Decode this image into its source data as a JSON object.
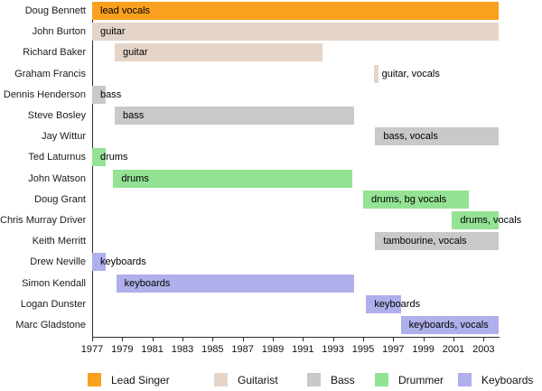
{
  "chart_data": {
    "type": "bar",
    "subtype": "member-timeline",
    "title": "",
    "xlabel": "",
    "ylabel": "",
    "grid": false,
    "legend_position": "bottom",
    "x_axis": {
      "min": 1977,
      "max": 2004,
      "tick_step": 2,
      "ticks": [
        1977,
        1979,
        1981,
        1983,
        1985,
        1987,
        1989,
        1991,
        1993,
        1995,
        1997,
        1999,
        2001,
        2003
      ]
    },
    "roles": {
      "lead_singer": {
        "label": "Lead Singer",
        "color": "#F9A11E"
      },
      "guitarist": {
        "label": "Guitarist",
        "color": "#E5D5C8"
      },
      "bass": {
        "label": "Bass",
        "color": "#C9C9C9"
      },
      "drummer": {
        "label": "Drummer",
        "color": "#94E294"
      },
      "keyboards": {
        "label": "Keyboards",
        "color": "#AFAFEB"
      }
    },
    "legend_order": [
      "lead_singer",
      "guitarist",
      "bass",
      "drummer",
      "keyboards"
    ],
    "members": [
      {
        "name": "Doug Bennett",
        "instrument": "lead vocals",
        "role": "lead_singer",
        "start": 1977,
        "end": 2004
      },
      {
        "name": "John Burton",
        "instrument": "guitar",
        "role": "guitarist",
        "start": 1977,
        "end": 2004
      },
      {
        "name": "Richard Baker",
        "instrument": "guitar",
        "role": "guitarist",
        "start": 1978.5,
        "end": 1992.3
      },
      {
        "name": "Graham Francis",
        "instrument": "guitar, vocals",
        "role": "guitarist",
        "start": 1995.7,
        "end": 1996
      },
      {
        "name": "Dennis Henderson",
        "instrument": "bass",
        "role": "bass",
        "start": 1977,
        "end": 1977.9
      },
      {
        "name": "Steve Bosley",
        "instrument": "bass",
        "role": "bass",
        "start": 1978.5,
        "end": 1994.4
      },
      {
        "name": "Jay Wittur",
        "instrument": "bass, vocals",
        "role": "bass",
        "start": 1995.8,
        "end": 2004
      },
      {
        "name": "Ted Laturnus",
        "instrument": "drums",
        "role": "drummer",
        "start": 1977,
        "end": 1977.9
      },
      {
        "name": "John Watson",
        "instrument": "drums",
        "role": "drummer",
        "start": 1978.4,
        "end": 1994.3
      },
      {
        "name": "Doug Grant",
        "instrument": "drums, bg vocals",
        "role": "drummer",
        "start": 1995,
        "end": 2002
      },
      {
        "name": "Chris Murray Driver",
        "instrument": "drums, vocals",
        "role": "drummer",
        "start": 2000.9,
        "end": 2004
      },
      {
        "name": "Keith Merritt",
        "instrument": "tambourine, vocals",
        "role": "bass",
        "start": 1995.8,
        "end": 2004
      },
      {
        "name": "Drew Neville",
        "instrument": "keyboards",
        "role": "keyboards",
        "start": 1977,
        "end": 1977.9
      },
      {
        "name": "Simon Kendall",
        "instrument": "keyboards",
        "role": "keyboards",
        "start": 1978.6,
        "end": 1994.4
      },
      {
        "name": "Logan Dunster",
        "instrument": "keyboards",
        "role": "keyboards",
        "start": 1995.2,
        "end": 1997.5
      },
      {
        "name": "Marc Gladstone",
        "instrument": "keyboards, vocals",
        "role": "keyboards",
        "start": 1997.5,
        "end": 2004
      }
    ]
  }
}
